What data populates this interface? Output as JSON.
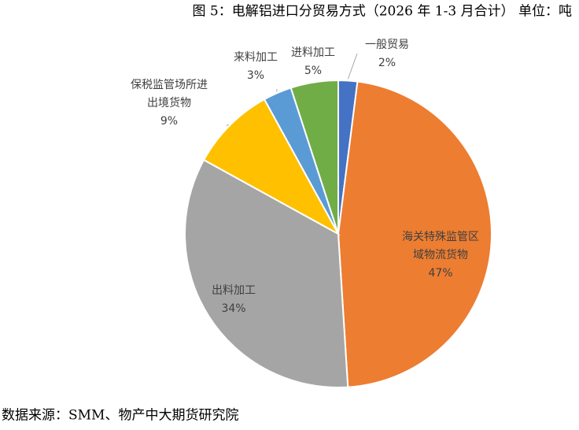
{
  "chart_data": {
    "type": "pie",
    "title": "图 5：电解铝进口分贸易方式（2026 年 1-3 月合计） 单位：吨",
    "source": "数据来源：SMM、物产中大期货研究院",
    "categories": [
      "一般贸易",
      "海关特殊监管区域物流货物",
      "出料加工",
      "保税监管场所进出境货物",
      "来料加工",
      "进料加工"
    ],
    "values": [
      2,
      47,
      34,
      9,
      3,
      5
    ],
    "value_labels": [
      "2%",
      "47%",
      "34%",
      "9%",
      "3%",
      "5%"
    ],
    "colors": [
      "#4472c4",
      "#ed7d31",
      "#a5a5a5",
      "#ffc000",
      "#5b9bd5",
      "#70ad47"
    ]
  }
}
